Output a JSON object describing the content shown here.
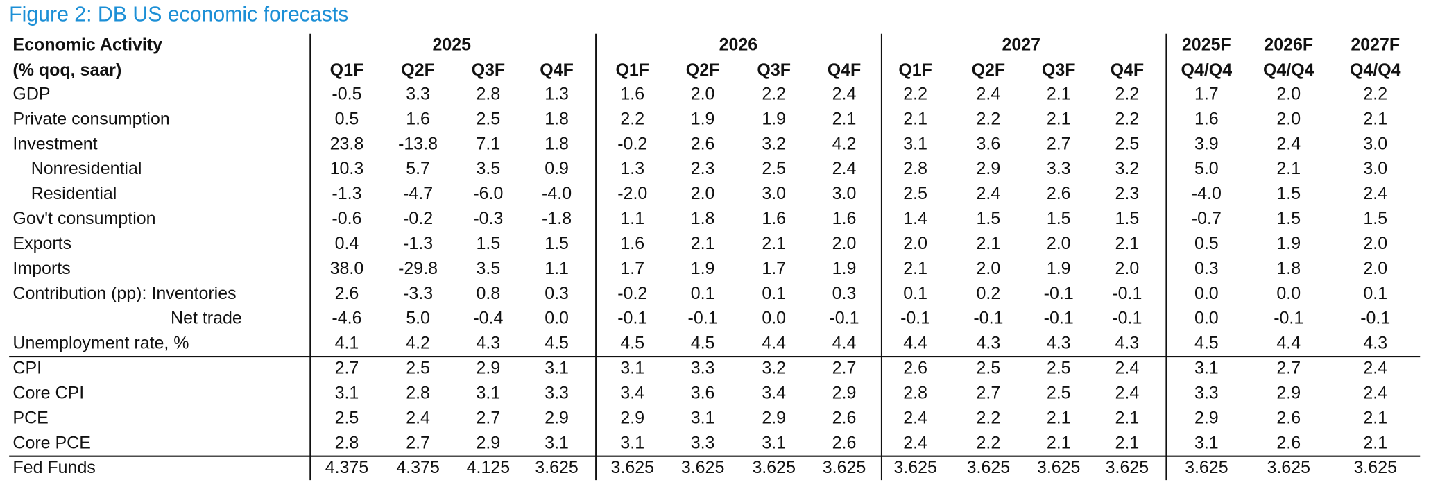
{
  "title": "Figure 2: DB US economic forecasts",
  "header": {
    "row_label_lines": [
      "Economic Activity",
      "(% qoq, saar)"
    ],
    "groups": [
      {
        "year": "2025",
        "quarters": [
          "Q1F",
          "Q2F",
          "Q3F",
          "Q4F"
        ]
      },
      {
        "year": "2026",
        "quarters": [
          "Q1F",
          "Q2F",
          "Q3F",
          "Q4F"
        ]
      },
      {
        "year": "2027",
        "quarters": [
          "Q1F",
          "Q2F",
          "Q3F",
          "Q4F"
        ]
      }
    ],
    "annual": [
      {
        "year": "2025F",
        "basis": "Q4/Q4"
      },
      {
        "year": "2026F",
        "basis": "Q4/Q4"
      },
      {
        "year": "2027F",
        "basis": "Q4/Q4"
      }
    ]
  },
  "rows": [
    {
      "label": "GDP",
      "values": [
        "-0.5",
        "3.3",
        "2.8",
        "1.3",
        "1.6",
        "2.0",
        "2.2",
        "2.4",
        "2.2",
        "2.4",
        "2.1",
        "2.2",
        "1.7",
        "2.0",
        "2.2"
      ]
    },
    {
      "label": "Private consumption",
      "values": [
        "0.5",
        "1.6",
        "2.5",
        "1.8",
        "2.2",
        "1.9",
        "1.9",
        "2.1",
        "2.1",
        "2.2",
        "2.1",
        "2.2",
        "1.6",
        "2.0",
        "2.1"
      ]
    },
    {
      "label": "Investment",
      "values": [
        "23.8",
        "-13.8",
        "7.1",
        "1.8",
        "-0.2",
        "2.6",
        "3.2",
        "4.2",
        "3.1",
        "3.6",
        "2.7",
        "2.5",
        "3.9",
        "2.4",
        "3.0"
      ]
    },
    {
      "label": "Nonresidential",
      "values": [
        "10.3",
        "5.7",
        "3.5",
        "0.9",
        "1.3",
        "2.3",
        "2.5",
        "2.4",
        "2.8",
        "2.9",
        "3.3",
        "3.2",
        "5.0",
        "2.1",
        "3.0"
      ]
    },
    {
      "label": "Residential",
      "values": [
        "-1.3",
        "-4.7",
        "-6.0",
        "-4.0",
        "-2.0",
        "2.0",
        "3.0",
        "3.0",
        "2.5",
        "2.4",
        "2.6",
        "2.3",
        "-4.0",
        "1.5",
        "2.4"
      ]
    },
    {
      "label": "Gov't consumption",
      "values": [
        "-0.6",
        "-0.2",
        "-0.3",
        "-1.8",
        "1.1",
        "1.8",
        "1.6",
        "1.6",
        "1.4",
        "1.5",
        "1.5",
        "1.5",
        "-0.7",
        "1.5",
        "1.5"
      ]
    },
    {
      "label": "Exports",
      "values": [
        "0.4",
        "-1.3",
        "1.5",
        "1.5",
        "1.6",
        "2.1",
        "2.1",
        "2.0",
        "2.0",
        "2.1",
        "2.0",
        "2.1",
        "0.5",
        "1.9",
        "2.0"
      ]
    },
    {
      "label": "Imports",
      "values": [
        "38.0",
        "-29.8",
        "3.5",
        "1.1",
        "1.7",
        "1.9",
        "1.7",
        "1.9",
        "2.1",
        "2.0",
        "1.9",
        "2.0",
        "0.3",
        "1.8",
        "2.0"
      ]
    },
    {
      "label": "Contribution (pp): Inventories",
      "values": [
        "2.6",
        "-3.3",
        "0.8",
        "0.3",
        "-0.2",
        "0.1",
        "0.1",
        "0.3",
        "0.1",
        "0.2",
        "-0.1",
        "-0.1",
        "0.0",
        "0.0",
        "0.1"
      ]
    },
    {
      "label": "Net trade",
      "values": [
        "-4.6",
        "5.0",
        "-0.4",
        "0.0",
        "-0.1",
        "-0.1",
        "0.0",
        "-0.1",
        "-0.1",
        "-0.1",
        "-0.1",
        "-0.1",
        "0.0",
        "-0.1",
        "-0.1"
      ]
    },
    {
      "label": "Unemployment rate, %",
      "values": [
        "4.1",
        "4.2",
        "4.3",
        "4.5",
        "4.5",
        "4.5",
        "4.4",
        "4.4",
        "4.4",
        "4.3",
        "4.3",
        "4.3",
        "4.5",
        "4.4",
        "4.3"
      ]
    },
    {
      "label": "CPI",
      "values": [
        "2.7",
        "2.5",
        "2.9",
        "3.1",
        "3.1",
        "3.3",
        "3.2",
        "2.7",
        "2.6",
        "2.5",
        "2.5",
        "2.4",
        "3.1",
        "2.7",
        "2.4"
      ]
    },
    {
      "label": "Core CPI",
      "values": [
        "3.1",
        "2.8",
        "3.1",
        "3.3",
        "3.4",
        "3.6",
        "3.4",
        "2.9",
        "2.8",
        "2.7",
        "2.5",
        "2.4",
        "3.3",
        "2.9",
        "2.4"
      ]
    },
    {
      "label": "PCE",
      "values": [
        "2.5",
        "2.4",
        "2.7",
        "2.9",
        "2.9",
        "3.1",
        "2.9",
        "2.6",
        "2.4",
        "2.2",
        "2.1",
        "2.1",
        "2.9",
        "2.6",
        "2.1"
      ]
    },
    {
      "label": "Core PCE",
      "values": [
        "2.8",
        "2.7",
        "2.9",
        "3.1",
        "3.1",
        "3.3",
        "3.1",
        "2.6",
        "2.4",
        "2.2",
        "2.1",
        "2.1",
        "3.1",
        "2.6",
        "2.1"
      ]
    },
    {
      "label": "Fed Funds",
      "values": [
        "4.375",
        "4.375",
        "4.125",
        "3.625",
        "3.625",
        "3.625",
        "3.625",
        "3.625",
        "3.625",
        "3.625",
        "3.625",
        "3.625",
        "3.625",
        "3.625",
        "3.625"
      ]
    }
  ]
}
